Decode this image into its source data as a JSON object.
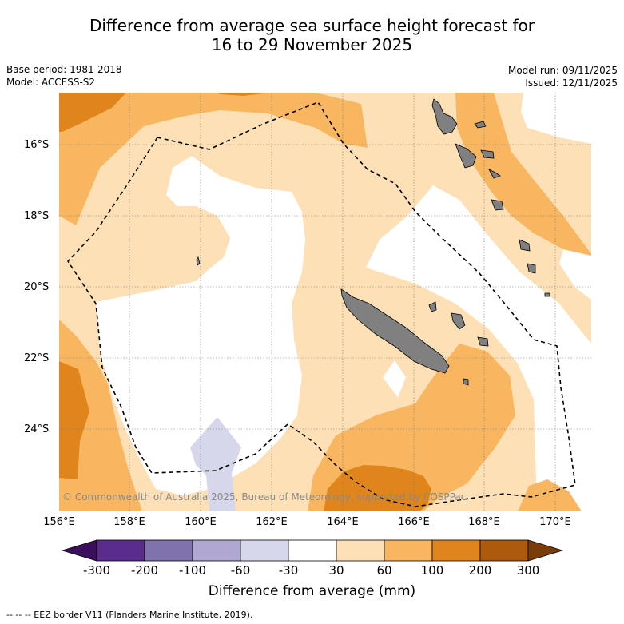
{
  "title": {
    "line1": "Difference from average sea surface height forecast for",
    "line2": "16 to 29 November 2025"
  },
  "meta": {
    "base_period": "Base period: 1981-2018",
    "model": "Model: ACCESS-S2",
    "model_run": "Model run: 09/11/2025",
    "issued": "Issued: 12/11/2025"
  },
  "map": {
    "latitude_labels": [
      "16°S",
      "18°S",
      "20°S",
      "22°S",
      "24°S"
    ],
    "longitude_labels": [
      "156°E",
      "158°E",
      "160°E",
      "162°E",
      "164°E",
      "166°E",
      "168°E",
      "170°E"
    ],
    "credit": "© Commonwealth of Australia 2025, Bureau of Meteorology, supported by COSPPac"
  },
  "colorbar": {
    "ticks": [
      "-300",
      "-200",
      "-100",
      "-60",
      "-30",
      "30",
      "60",
      "100",
      "200",
      "300"
    ],
    "colors": [
      "#3a0f5c",
      "#5a2d8c",
      "#8073ad",
      "#b0a8d2",
      "#d6d7ea",
      "#ffffff",
      "#fde0b6",
      "#f9b660",
      "#e0851c",
      "#ad5a0c",
      "#7a3c08"
    ],
    "title": "Difference from average (mm)"
  },
  "footer": "-- -- -- EEZ border V11 (Flanders Marine Institute, 2019)."
}
